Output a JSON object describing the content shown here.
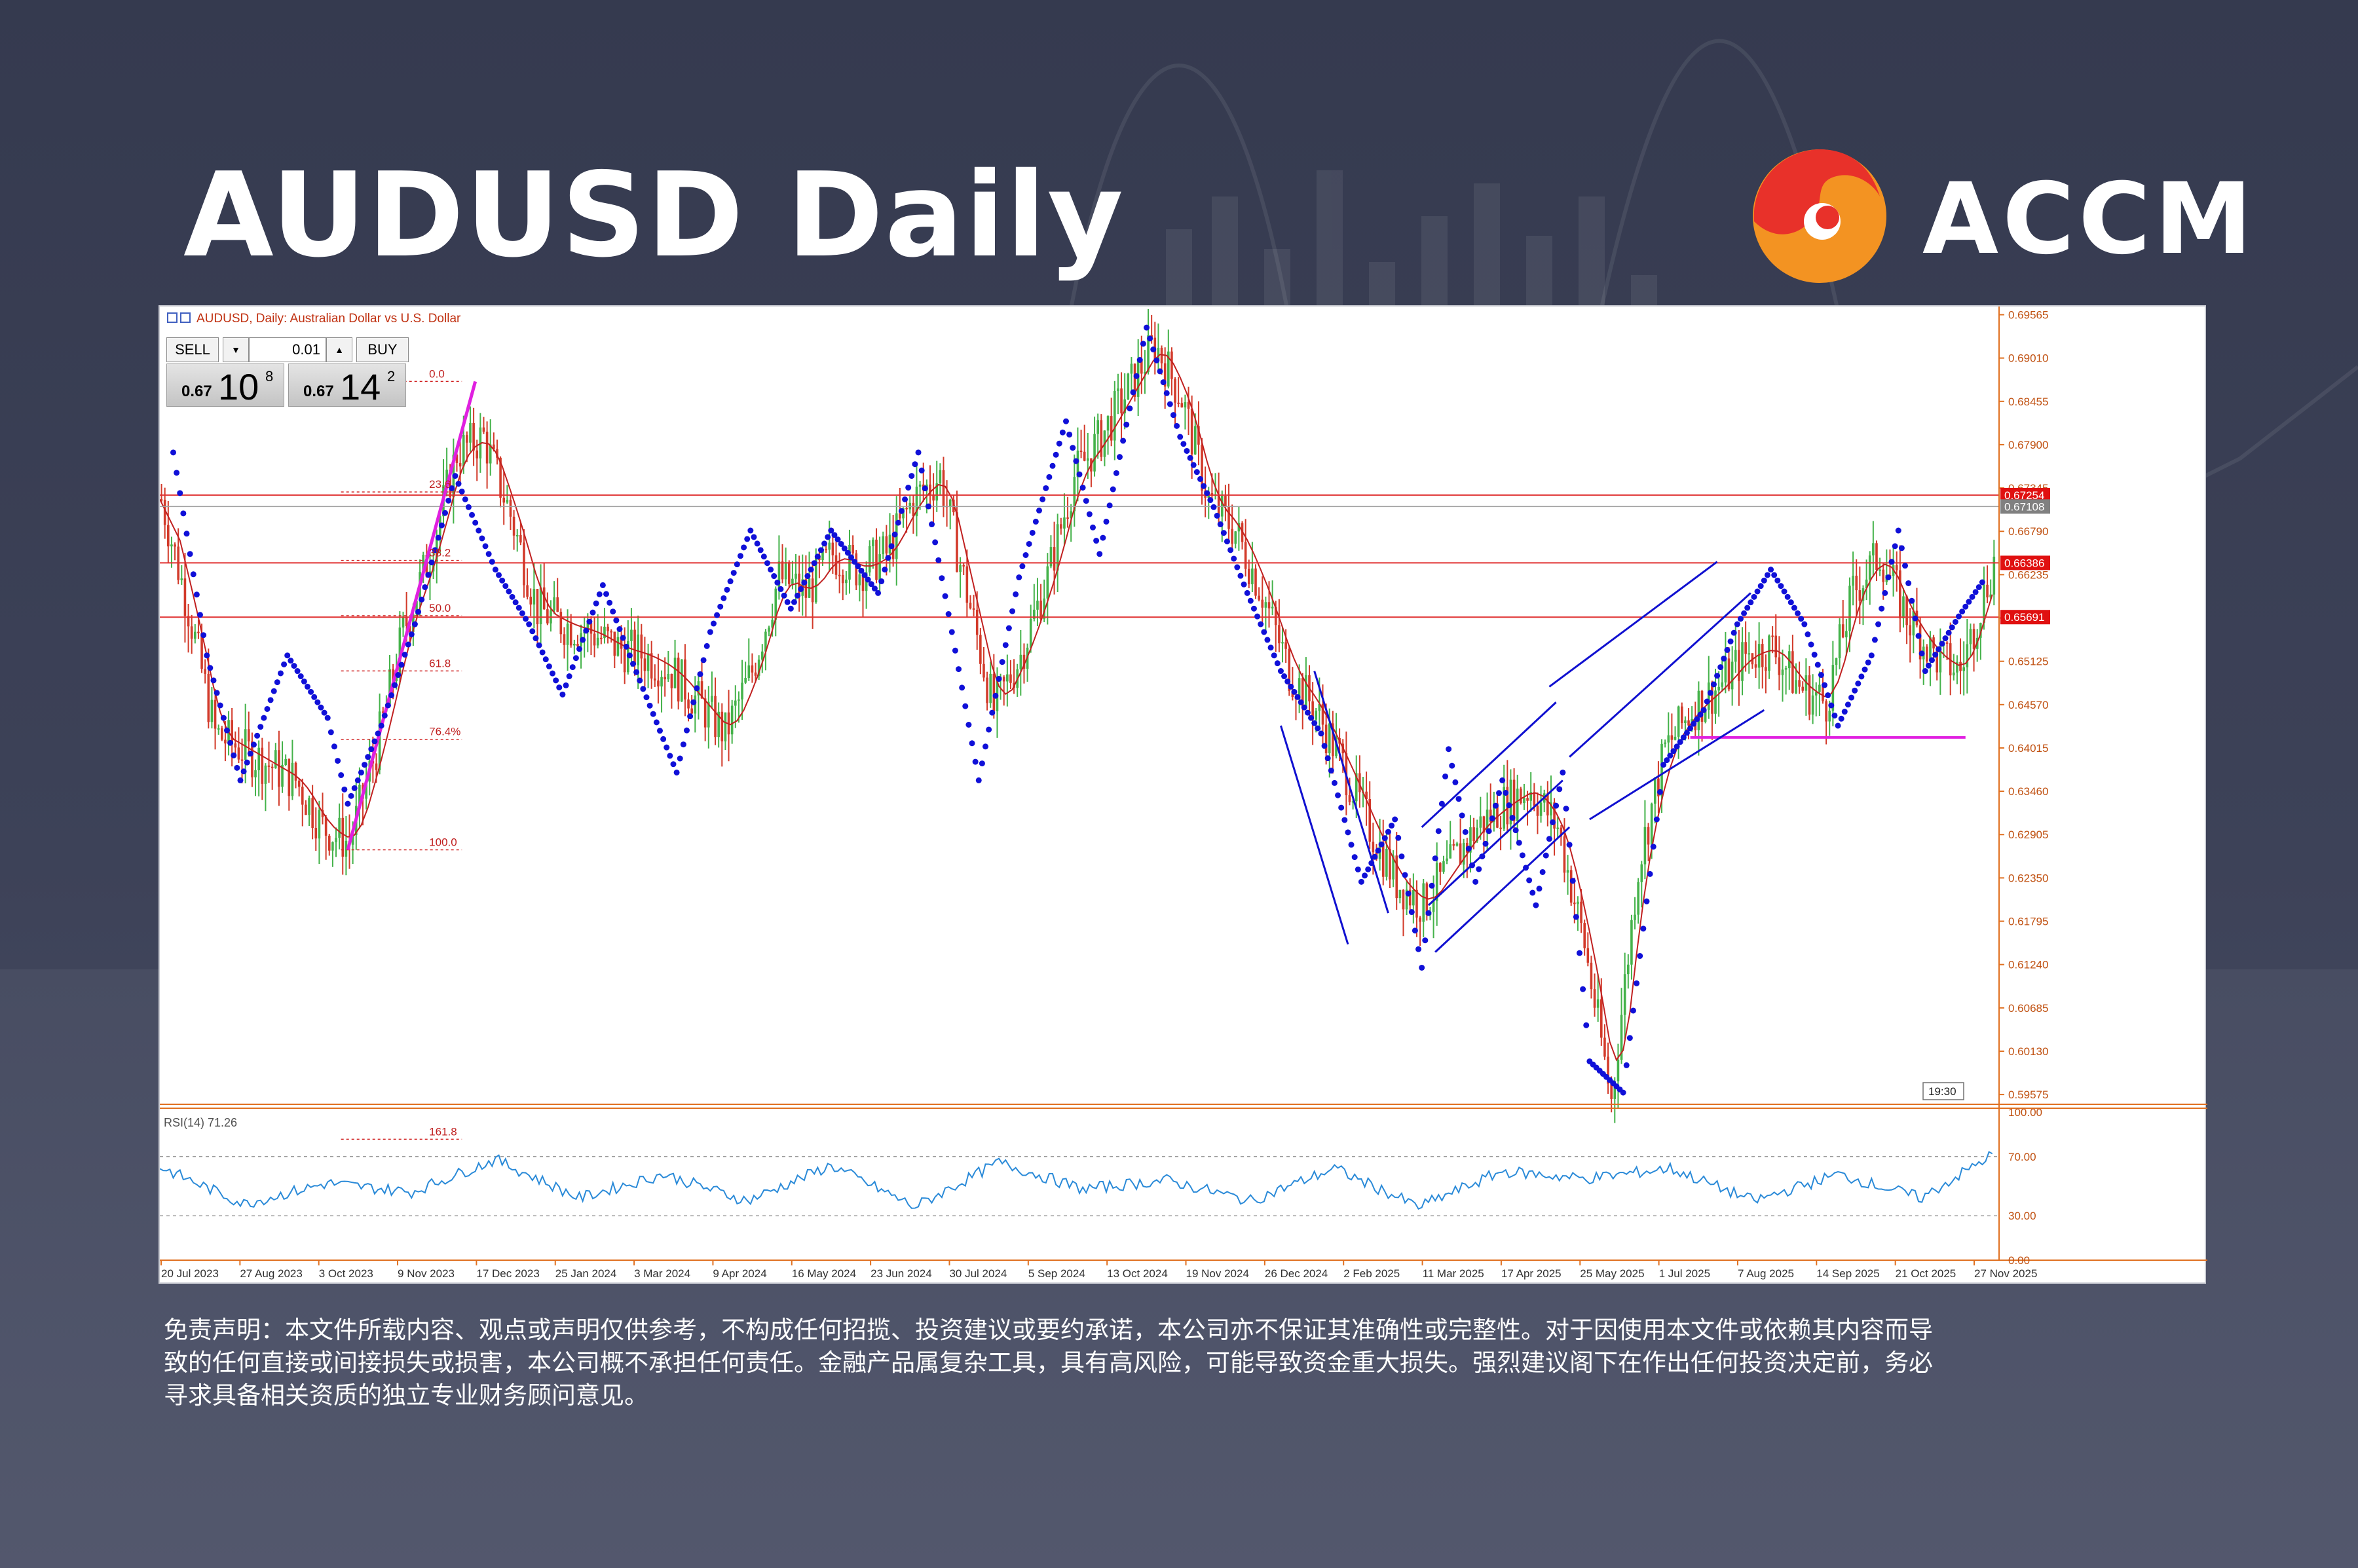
{
  "header": {
    "title": "AUDUSD Daily"
  },
  "logo": {
    "text": "ACCM",
    "colors": [
      "#e8312a",
      "#f39322"
    ]
  },
  "chart_info": {
    "label": "AUDUSD, Daily:  Australian Dollar vs U.S. Dollar",
    "time_marker": "19:30"
  },
  "trade_panel": {
    "sell_label": "SELL",
    "buy_label": "BUY",
    "lot": "0.01",
    "sell_prefix": "0.67",
    "sell_big": "10",
    "sell_sup": "8",
    "buy_prefix": "0.67",
    "buy_big": "14",
    "buy_sup": "2"
  },
  "chart_data": {
    "type": "line",
    "title": "AUDUSD, Daily:  Australian Dollar vs U.S. Dollar",
    "price_axis_ticks": [
      "0.69565",
      "0.69010",
      "0.68455",
      "0.67900",
      "0.67345",
      "0.66790",
      "0.66235",
      "0.65680",
      "0.65125",
      "0.64570",
      "0.64015",
      "0.63460",
      "0.62905",
      "0.62350",
      "0.61795",
      "0.61240",
      "0.60685",
      "0.60130",
      "0.59575"
    ],
    "price_labels": [
      {
        "value": 0.67254,
        "text": "0.67254",
        "color": "#e01010"
      },
      {
        "value": 0.67108,
        "text": "0.67108",
        "color": "#808080"
      },
      {
        "value": 0.66386,
        "text": "0.66386",
        "color": "#e01010"
      },
      {
        "value": 0.65691,
        "text": "0.65691",
        "color": "#e01010"
      }
    ],
    "horizontal_levels": [
      0.67254,
      0.66386,
      0.65691
    ],
    "support_level": {
      "value": 0.6415,
      "color": "#e020e0"
    },
    "fibonacci": {
      "high": 0.6871,
      "low": 0.6271,
      "levels": [
        {
          "label": "0.0",
          "value": 0.6871
        },
        {
          "label": "23.6",
          "value": 0.67294
        },
        {
          "label": "38.2",
          "value": 0.66418
        },
        {
          "label": "50.0",
          "value": 0.6571
        },
        {
          "label": "61.8",
          "value": 0.65002
        },
        {
          "label": "76.4%",
          "value": 0.64126
        },
        {
          "label": "100.0",
          "value": 0.6271
        },
        {
          "label": "161.8",
          "value": 0.59002
        }
      ]
    },
    "x_tick_labels": [
      "20 Jul 2023",
      "27 Aug 2023",
      "3 Oct 2023",
      "9 Nov 2023",
      "17 Dec 2023",
      "25 Jan 2024",
      "3 Mar 2024",
      "9 Apr 2024",
      "16 May 2024",
      "23 Jun 2024",
      "30 Jul 2024",
      "5 Sep 2024",
      "13 Oct 2024",
      "19 Nov 2024",
      "26 Dec 2024",
      "2 Feb 2025",
      "11 Mar 2025",
      "17 Apr 2025",
      "25 May 2025",
      "1 Jul 2025",
      "7 Aug 2025",
      "14 Sep 2025",
      "21 Oct 2025",
      "27 Nov 2025"
    ],
    "series": [
      {
        "name": "AUDUSD",
        "x": [
          0,
          8,
          16,
          24,
          32,
          40,
          48,
          56,
          64,
          72,
          80,
          88,
          96,
          104,
          112,
          120,
          128,
          136,
          144,
          152,
          160,
          168,
          176,
          184,
          192,
          200,
          208,
          216,
          224,
          232,
          240,
          248,
          256,
          264,
          272,
          280,
          288,
          296,
          304,
          312,
          320,
          328,
          336,
          344,
          352,
          360,
          368,
          376,
          384,
          392,
          400,
          408,
          416,
          424,
          432,
          440,
          448,
          456,
          464,
          472,
          480,
          488,
          496,
          504,
          512,
          520,
          528,
          536,
          546
        ],
        "y": [
          0.672,
          0.658,
          0.642,
          0.64,
          0.638,
          0.636,
          0.63,
          0.628,
          0.64,
          0.655,
          0.665,
          0.678,
          0.68,
          0.67,
          0.658,
          0.656,
          0.655,
          0.653,
          0.652,
          0.65,
          0.646,
          0.642,
          0.65,
          0.662,
          0.66,
          0.665,
          0.663,
          0.665,
          0.672,
          0.675,
          0.66,
          0.645,
          0.652,
          0.662,
          0.675,
          0.68,
          0.686,
          0.692,
          0.685,
          0.672,
          0.668,
          0.66,
          0.65,
          0.645,
          0.638,
          0.63,
          0.623,
          0.62,
          0.625,
          0.63,
          0.633,
          0.635,
          0.63,
          0.615,
          0.595,
          0.625,
          0.64,
          0.645,
          0.648,
          0.652,
          0.653,
          0.648,
          0.646,
          0.66,
          0.665,
          0.657,
          0.652,
          0.65,
          0.664
        ]
      },
      {
        "name": "RSI(14) 71.26",
        "x": [
          0,
          25,
          50,
          75,
          100,
          125,
          150,
          175,
          200,
          225,
          250,
          275,
          300,
          325,
          350,
          375,
          400,
          425,
          450,
          475,
          500,
          525,
          546
        ],
        "y": [
          63,
          38,
          52,
          46,
          68,
          42,
          58,
          40,
          64,
          36,
          66,
          48,
          54,
          40,
          62,
          36,
          60,
          55,
          62,
          40,
          58,
          42,
          71.26
        ]
      }
    ],
    "rsi_axis_ticks": [
      "100.00",
      "70.00",
      "30.00",
      "0.00"
    ],
    "rsi_levels": [
      70,
      30
    ],
    "parabolic_sar": [
      {
        "x": 4,
        "y": 0.678
      },
      {
        "x": 14,
        "y": 0.652
      },
      {
        "x": 24,
        "y": 0.636
      },
      {
        "x": 38,
        "y": 0.652
      },
      {
        "x": 50,
        "y": 0.644
      },
      {
        "x": 56,
        "y": 0.633
      },
      {
        "x": 66,
        "y": 0.643
      },
      {
        "x": 76,
        "y": 0.656
      },
      {
        "x": 88,
        "y": 0.675
      },
      {
        "x": 100,
        "y": 0.663
      },
      {
        "x": 110,
        "y": 0.656
      },
      {
        "x": 120,
        "y": 0.647
      },
      {
        "x": 132,
        "y": 0.661
      },
      {
        "x": 140,
        "y": 0.652
      },
      {
        "x": 154,
        "y": 0.637
      },
      {
        "x": 164,
        "y": 0.655
      },
      {
        "x": 176,
        "y": 0.668
      },
      {
        "x": 188,
        "y": 0.658
      },
      {
        "x": 200,
        "y": 0.668
      },
      {
        "x": 214,
        "y": 0.66
      },
      {
        "x": 226,
        "y": 0.678
      },
      {
        "x": 236,
        "y": 0.655
      },
      {
        "x": 244,
        "y": 0.636
      },
      {
        "x": 256,
        "y": 0.662
      },
      {
        "x": 270,
        "y": 0.682
      },
      {
        "x": 280,
        "y": 0.665
      },
      {
        "x": 294,
        "y": 0.694
      },
      {
        "x": 304,
        "y": 0.68
      },
      {
        "x": 314,
        "y": 0.671
      },
      {
        "x": 324,
        "y": 0.66
      },
      {
        "x": 334,
        "y": 0.65
      },
      {
        "x": 346,
        "y": 0.642
      },
      {
        "x": 358,
        "y": 0.623
      },
      {
        "x": 368,
        "y": 0.631
      },
      {
        "x": 376,
        "y": 0.612
      },
      {
        "x": 384,
        "y": 0.64
      },
      {
        "x": 392,
        "y": 0.623
      },
      {
        "x": 400,
        "y": 0.636
      },
      {
        "x": 410,
        "y": 0.62
      },
      {
        "x": 418,
        "y": 0.637
      },
      {
        "x": 426,
        "y": 0.6
      },
      {
        "x": 436,
        "y": 0.596
      },
      {
        "x": 448,
        "y": 0.638
      },
      {
        "x": 460,
        "y": 0.645
      },
      {
        "x": 470,
        "y": 0.656
      },
      {
        "x": 480,
        "y": 0.663
      },
      {
        "x": 490,
        "y": 0.656
      },
      {
        "x": 500,
        "y": 0.643
      },
      {
        "x": 510,
        "y": 0.652
      },
      {
        "x": 518,
        "y": 0.668
      },
      {
        "x": 526,
        "y": 0.65
      },
      {
        "x": 536,
        "y": 0.657
      },
      {
        "x": 544,
        "y": 0.662
      }
    ],
    "channel": {
      "color": "#1010d0",
      "lines": [
        [
          {
            "x": 376,
            "y": 0.63
          },
          {
            "x": 416,
            "y": 0.646
          }
        ],
        [
          {
            "x": 378,
            "y": 0.62
          },
          {
            "x": 418,
            "y": 0.636
          }
        ],
        [
          {
            "x": 380,
            "y": 0.614
          },
          {
            "x": 420,
            "y": 0.63
          }
        ],
        [
          {
            "x": 334,
            "y": 0.643
          },
          {
            "x": 354,
            "y": 0.615
          }
        ],
        [
          {
            "x": 344,
            "y": 0.65
          },
          {
            "x": 366,
            "y": 0.619
          }
        ],
        [
          {
            "x": 414,
            "y": 0.648
          },
          {
            "x": 464,
            "y": 0.664
          }
        ],
        [
          {
            "x": 420,
            "y": 0.639
          },
          {
            "x": 474,
            "y": 0.66
          }
        ],
        [
          {
            "x": 426,
            "y": 0.631
          },
          {
            "x": 478,
            "y": 0.645
          }
        ]
      ]
    },
    "fib_trendline": [
      {
        "x": 56,
        "y": 0.6271
      },
      {
        "x": 94,
        "y": 0.6871
      }
    ],
    "x_range": [
      0,
      548
    ],
    "y_range": [
      0.5945,
      0.6967
    ]
  },
  "disclaimer": {
    "line1": "免责声明：本文件所载内容、观点或声明仅供参考，不构成任何招揽、投资建议或要约承诺，本公司亦不保证其准确性或完整性。对于因使用本文件或依赖其内容而导",
    "line2": "致的任何直接或间接损失或损害，本公司概不承担任何责任。金融产品属复杂工具，具有高风险，可能导致资金重大损失。强烈建议阁下在作出任何投资决定前，务必",
    "line3": "寻求具备相关资质的独立专业财务顾问意见。"
  }
}
